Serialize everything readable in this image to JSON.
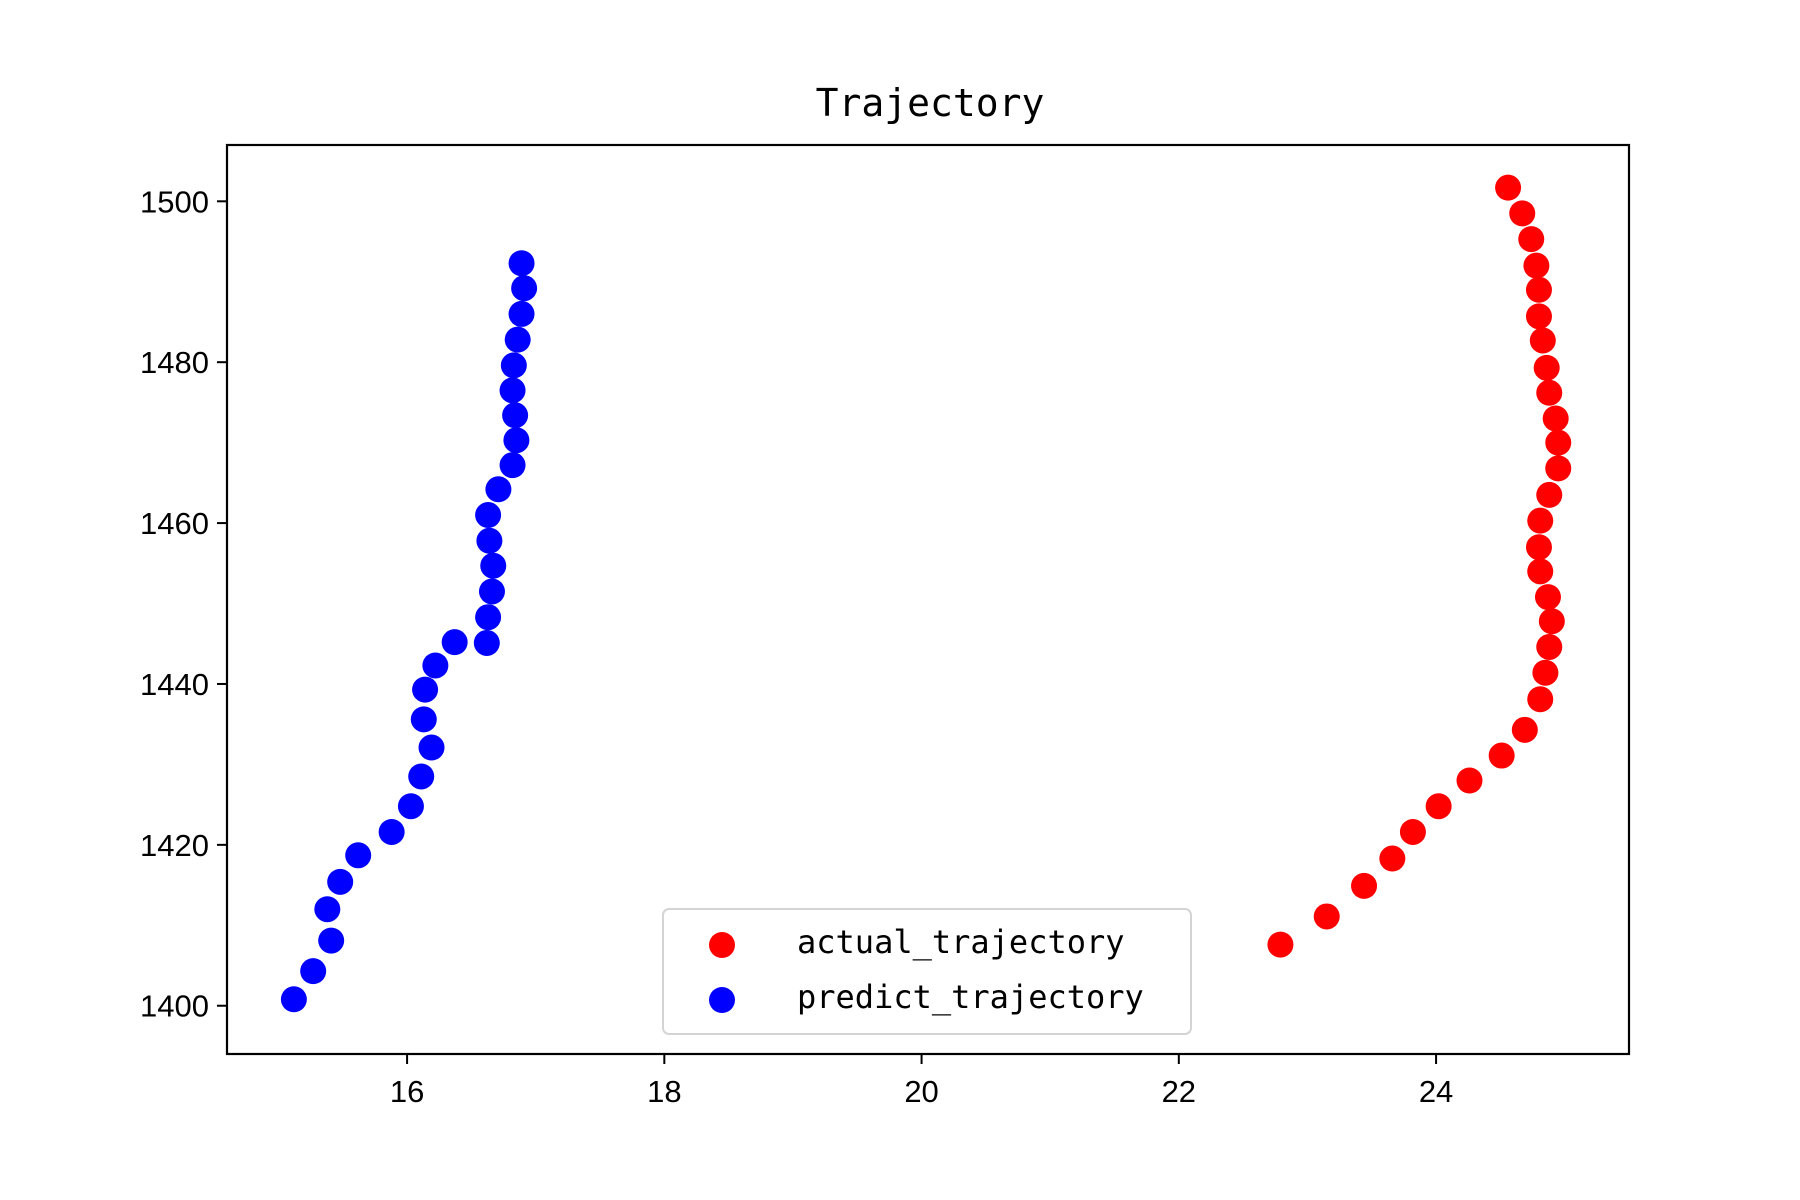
{
  "chart_data": {
    "type": "scatter",
    "title": "Trajectory",
    "xlabel": "",
    "ylabel": "",
    "xlim": [
      14.6,
      25.5
    ],
    "ylim": [
      1394,
      1507
    ],
    "xticks": [
      16,
      18,
      20,
      22,
      24
    ],
    "yticks": [
      1400,
      1420,
      1440,
      1460,
      1480,
      1500
    ],
    "grid": false,
    "legend_position": "lower center",
    "series": [
      {
        "name": "actual_trajectory",
        "color": "#ff0000",
        "x": [
          24.56,
          24.67,
          24.74,
          24.78,
          24.8,
          24.8,
          24.83,
          24.86,
          24.88,
          24.93,
          24.95,
          24.95,
          24.88,
          24.81,
          24.8,
          24.81,
          24.87,
          24.9,
          24.88,
          24.85,
          24.81,
          24.69,
          24.51,
          24.26,
          24.02,
          23.82,
          23.66,
          23.44,
          23.15,
          22.79
        ],
        "y": [
          1501.7,
          1498.5,
          1495.3,
          1492.0,
          1489.0,
          1485.7,
          1482.7,
          1479.3,
          1476.2,
          1473.0,
          1470.0,
          1466.8,
          1463.5,
          1460.3,
          1457.0,
          1454.0,
          1450.8,
          1447.8,
          1444.6,
          1441.4,
          1438.1,
          1434.3,
          1431.1,
          1428.0,
          1424.8,
          1421.6,
          1418.3,
          1414.9,
          1411.1,
          1407.6
        ]
      },
      {
        "name": "predict_trajectory",
        "color": "#0000ff",
        "x": [
          16.89,
          16.91,
          16.89,
          16.86,
          16.83,
          16.82,
          16.84,
          16.85,
          16.82,
          16.71,
          16.63,
          16.64,
          16.67,
          16.66,
          16.63,
          16.62,
          16.37,
          16.22,
          16.14,
          16.13,
          16.19,
          16.11,
          16.03,
          15.88,
          15.62,
          15.48,
          15.38,
          15.41,
          15.27,
          15.12
        ],
        "y": [
          1492.3,
          1489.2,
          1486.0,
          1482.8,
          1479.6,
          1476.5,
          1473.4,
          1470.3,
          1467.2,
          1464.2,
          1461.0,
          1457.8,
          1454.7,
          1451.5,
          1448.3,
          1445.1,
          1445.2,
          1442.3,
          1439.3,
          1435.6,
          1432.1,
          1428.5,
          1424.8,
          1421.6,
          1418.7,
          1415.4,
          1412.0,
          1408.1,
          1404.3,
          1400.8
        ]
      }
    ]
  }
}
